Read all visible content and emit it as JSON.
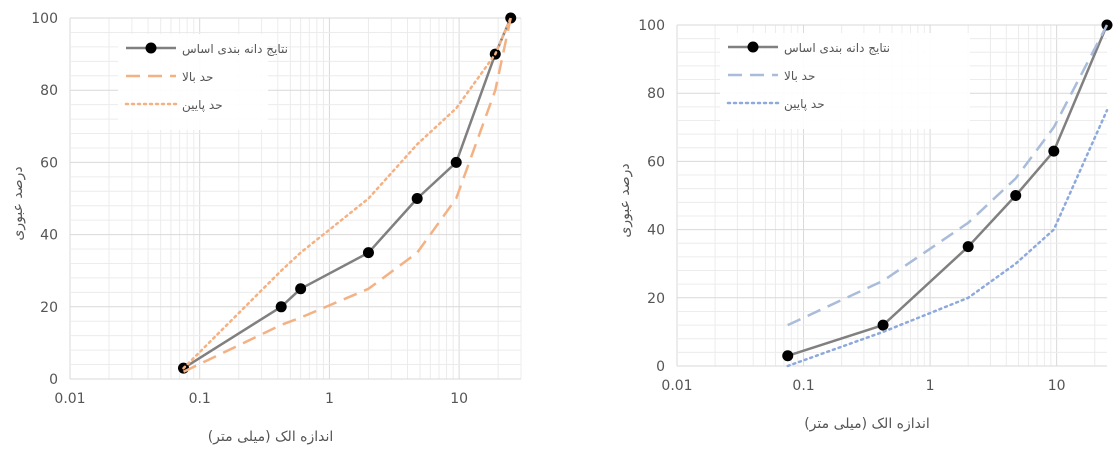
{
  "chart_data": [
    {
      "type": "line",
      "x_scale": "log",
      "xlim": [
        0.01,
        30
      ],
      "ylim": [
        0,
        100
      ],
      "xticks": [
        0.01,
        0.1,
        1,
        10
      ],
      "xtick_labels": [
        "0.01",
        "0.1",
        "1",
        "10"
      ],
      "yticks": [
        0,
        20,
        40,
        60,
        80,
        100
      ],
      "ytick_labels": [
        "0",
        "20",
        "40",
        "60",
        "80",
        "100"
      ],
      "xlabel": "اندازه الک (میلی متر)",
      "ylabel": "درصد عبوری",
      "grid": true,
      "legend_position": "top-left",
      "series": [
        {
          "name": "نتایج دانه بندی اساس",
          "style": "solid-markers",
          "color": "#808080",
          "marker_color": "#000000",
          "points": [
            [
              0.075,
              3
            ],
            [
              0.425,
              20
            ],
            [
              0.6,
              25
            ],
            [
              2,
              35
            ],
            [
              4.75,
              50
            ],
            [
              9.5,
              60
            ],
            [
              19,
              90
            ],
            [
              25,
              100
            ]
          ]
        },
        {
          "name": "حد بالا",
          "style": "dashed",
          "color": "#F4B183",
          "points": [
            [
              0.075,
              2
            ],
            [
              0.425,
              15
            ],
            [
              0.6,
              17
            ],
            [
              2,
              25
            ],
            [
              4.75,
              35
            ],
            [
              9.5,
              50
            ],
            [
              19,
              80
            ],
            [
              25,
              100
            ]
          ]
        },
        {
          "name": "حد پایین",
          "style": "dotted",
          "color": "#F4B183",
          "points": [
            [
              0.075,
              3
            ],
            [
              0.425,
              30
            ],
            [
              0.6,
              35
            ],
            [
              2,
              50
            ],
            [
              4.75,
              65
            ],
            [
              9.5,
              75
            ],
            [
              19,
              90
            ],
            [
              25,
              100
            ]
          ]
        }
      ]
    },
    {
      "type": "line",
      "x_scale": "log",
      "xlim": [
        0.01,
        25
      ],
      "ylim": [
        0,
        100
      ],
      "xticks": [
        0.01,
        0.1,
        1,
        10
      ],
      "xtick_labels": [
        "0.01",
        "0.1",
        "1",
        "10"
      ],
      "yticks": [
        0,
        20,
        40,
        60,
        80,
        100
      ],
      "ytick_labels": [
        "0",
        "20",
        "40",
        "60",
        "80",
        "100"
      ],
      "xlabel": "اندازه الک (میلی متر)",
      "ylabel": "درصد عبوری",
      "grid": true,
      "legend_position": "top-left",
      "series": [
        {
          "name": "نتایج دانه بندی اساس",
          "style": "solid-markers",
          "color": "#808080",
          "marker_color": "#000000",
          "points": [
            [
              0.075,
              3
            ],
            [
              0.425,
              12
            ],
            [
              2,
              35
            ],
            [
              4.75,
              50
            ],
            [
              9.5,
              63
            ],
            [
              25,
              100
            ]
          ]
        },
        {
          "name": "حد بالا",
          "style": "dashed",
          "color": "#A9BCDA",
          "points": [
            [
              0.075,
              12
            ],
            [
              0.425,
              25
            ],
            [
              2,
              42
            ],
            [
              4.75,
              55
            ],
            [
              9.5,
              70
            ],
            [
              25,
              100
            ]
          ]
        },
        {
          "name": "حد پایین",
          "style": "dotted",
          "color": "#8EA9DB",
          "points": [
            [
              0.075,
              0
            ],
            [
              0.425,
              10
            ],
            [
              2,
              20
            ],
            [
              4.75,
              30
            ],
            [
              9.5,
              40
            ],
            [
              25,
              75
            ]
          ]
        }
      ]
    }
  ]
}
